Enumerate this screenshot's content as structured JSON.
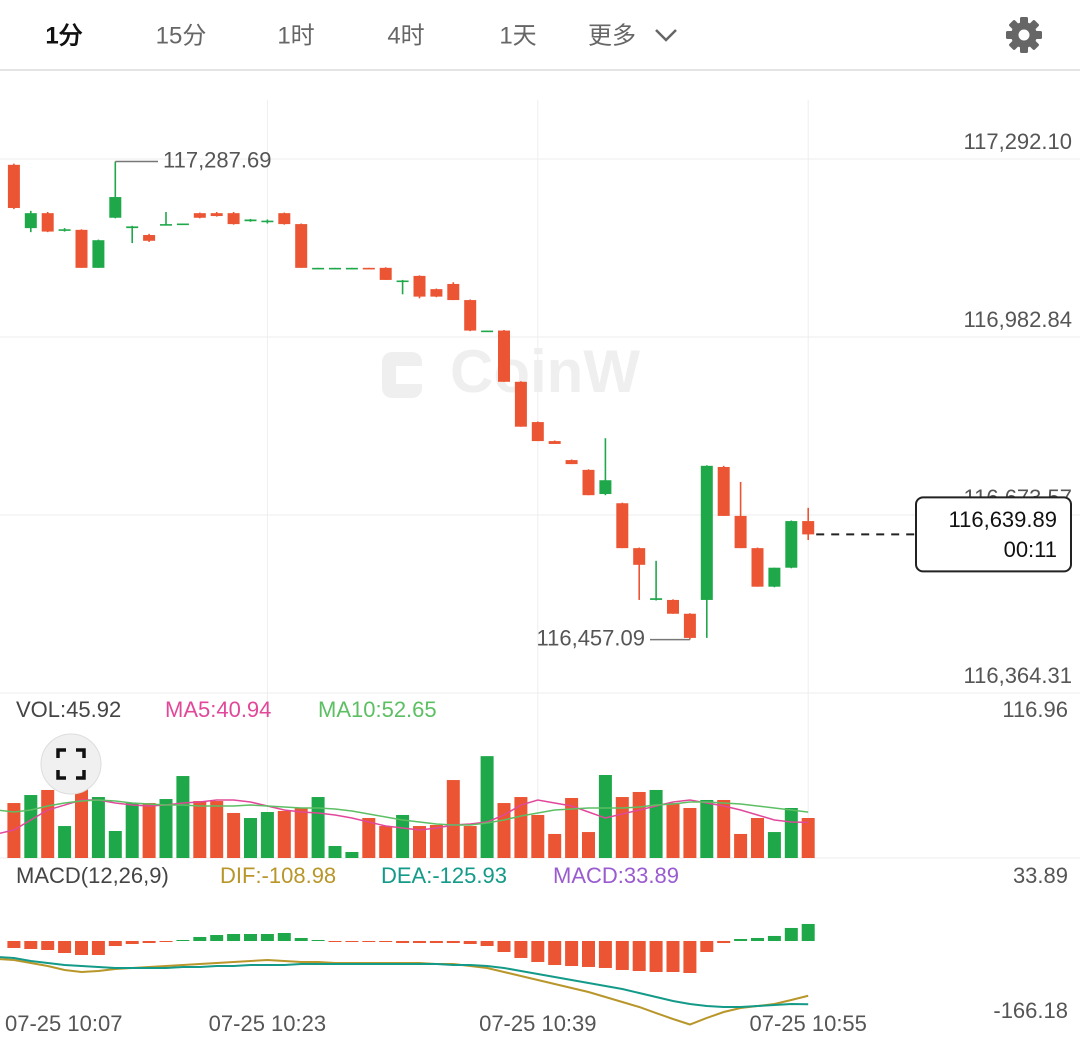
{
  "tabs": [
    "1分",
    "15分",
    "1时",
    "4时",
    "1天",
    "更多"
  ],
  "chart_data": [
    {
      "type": "candlestick",
      "watermark": "CoinW",
      "categories": [
        "07-25 10:07",
        null,
        null,
        null,
        null,
        null,
        null,
        null,
        null,
        null,
        null,
        null,
        null,
        null,
        null,
        null,
        "07-25 10:23",
        null,
        null,
        null,
        null,
        null,
        null,
        null,
        null,
        null,
        null,
        null,
        null,
        null,
        null,
        null,
        "07-25 10:39",
        null,
        null,
        null,
        null,
        null,
        null,
        null,
        null,
        null,
        null,
        null,
        null,
        null,
        null,
        null,
        "07-25 10:55"
      ],
      "open": [
        null,
        117282,
        117172,
        117198,
        117168,
        117169,
        117103,
        117190,
        117172,
        117160,
        117178,
        117179,
        117198,
        117198,
        117198,
        117184,
        117184,
        117198,
        117179,
        117102,
        117102,
        117102,
        117103,
        117103,
        117080,
        117089,
        117066,
        117075,
        117047,
        116993,
        116994,
        116905,
        116835,
        116802,
        116769,
        116752,
        116710,
        116694,
        116616,
        116526,
        116526,
        116502,
        116526,
        116757,
        116672,
        116616,
        116549,
        116582,
        116663
      ],
      "high": [
        null,
        117284,
        117202,
        117200,
        117172,
        117170,
        117152,
        117287.69,
        117176,
        117162,
        117200,
        117180,
        117199,
        117200,
        117200,
        117188,
        117187,
        117199,
        117180,
        117103,
        117103,
        117103,
        117103,
        117104,
        117082,
        117090,
        117067,
        117078,
        117048,
        116994,
        116995,
        116906,
        116836,
        116803,
        116770,
        116753,
        116807,
        116695,
        116617,
        116594,
        116527,
        116503,
        116760,
        116759,
        116731,
        116617,
        116582,
        116664,
        116686
      ],
      "low": [
        null,
        117205,
        117165,
        117165,
        117166,
        117103,
        117103,
        117189,
        117146,
        117148,
        117177,
        117179,
        117189,
        117192,
        117178,
        117183,
        117180,
        117178,
        117103,
        117102,
        117102,
        117102,
        117101,
        117082,
        117057,
        117050,
        117052,
        117047,
        116993,
        116993,
        116905,
        116827,
        116802,
        116797,
        116762,
        116708,
        116708,
        116616,
        116526,
        116525,
        116502,
        116457.09,
        116460,
        116672,
        116616,
        116549,
        116548,
        116581,
        116630
      ],
      "close": [
        null,
        117207,
        117198,
        117166,
        117170,
        117103,
        117151,
        117226,
        117175,
        117150,
        117179,
        117180,
        117190,
        117193,
        117179,
        117187,
        117185,
        117179,
        117103,
        117103,
        117103,
        117103,
        117101,
        117082,
        117081,
        117053,
        117053,
        117047,
        116994,
        116994,
        116905,
        116827,
        116802,
        116797,
        116762,
        116708,
        116734,
        116616,
        116587,
        116529,
        116502,
        116460,
        116759,
        116672,
        116616,
        116549,
        116582,
        116663,
        116639.89
      ],
      "up_color": "#1fa84a",
      "down_color": "#eb5533",
      "ylim": [
        116364.31,
        117394.6
      ],
      "yticks": [
        {
          "value": 117292.1,
          "label": "117,292.10"
        },
        {
          "value": 116982.84,
          "label": "116,982.84"
        },
        {
          "value": 116673.57,
          "label": "116,673.57"
        },
        {
          "value": 116364.31,
          "label": "116,364.31"
        }
      ],
      "grid": true,
      "high_marker": {
        "value": 117287.69,
        "label": "117,287.69"
      },
      "low_marker": {
        "value": 116457.09,
        "label": "116,457.09"
      },
      "last_price": {
        "value": 116639.89,
        "label": "116,639.89"
      },
      "countdown": "00:11"
    },
    {
      "type": "bar",
      "title": "VOL:45.92",
      "max_value": 116.96,
      "ylim": [
        0,
        181.4
      ],
      "values": [
        null,
        63.1,
        72.3,
        78.1,
        36.7,
        83.8,
        70.0,
        31.0,
        63.1,
        63.1,
        67.7,
        94.1,
        65.4,
        65.4,
        51.7,
        45.9,
        52.8,
        54.0,
        57.4,
        70.0,
        13.8,
        6.9,
        45.9,
        36.7,
        49.4,
        36.7,
        37.9,
        89.5,
        36.7,
        116.96,
        63.1,
        70.0,
        49.4,
        27.6,
        68.9,
        29.8,
        95.3,
        70.0,
        75.8,
        78.1,
        63.1,
        57.4,
        66.6,
        66.6,
        27.6,
        45.9,
        29.8,
        57.4,
        45.92
      ],
      "series": [
        {
          "name": "MA5:40.94",
          "color": "#e2489a",
          "values": [
            27.6,
            32.1,
            43.6,
            55.1,
            60.8,
            66.6,
            66.6,
            63.1,
            60.8,
            59.7,
            60.8,
            63.1,
            64.3,
            66.6,
            66.6,
            64.3,
            59.7,
            55.1,
            52.8,
            51.7,
            49.4,
            45.9,
            41.3,
            36.7,
            34.4,
            32.1,
            34.4,
            37.9,
            39.0,
            41.3,
            49.4,
            60.8,
            66.6,
            63.1,
            59.7,
            52.8,
            45.9,
            50.5,
            55.1,
            59.7,
            64.3,
            66.6,
            63.1,
            59.7,
            55.1,
            49.4,
            43.6,
            41.3,
            40.94
          ]
        },
        {
          "name": "MA10:52.65",
          "color": "#5cbf63",
          "values": [
            55.1,
            52.8,
            55.1,
            59.7,
            63.1,
            65.4,
            66.6,
            65.4,
            63.1,
            62.0,
            60.8,
            60.8,
            59.7,
            59.7,
            59.7,
            60.8,
            59.7,
            58.5,
            57.4,
            57.4,
            56.3,
            54.0,
            50.5,
            47.1,
            43.6,
            41.3,
            39.0,
            37.9,
            37.9,
            40.2,
            43.6,
            48.2,
            51.7,
            55.1,
            56.3,
            57.4,
            57.4,
            57.4,
            58.5,
            60.8,
            62.0,
            64.3,
            64.3,
            63.1,
            62.0,
            59.7,
            57.4,
            55.1,
            52.65
          ]
        }
      ]
    },
    {
      "type": "macd",
      "title": "MACD(12,26,9)",
      "histogram_label": "MACD:33.89",
      "histogram_label_color": "#9a5bd0",
      "max_value": 33.89,
      "min_value": -166.18,
      "ylim": [
        -197.0,
        151.2
      ],
      "values": [
        null,
        -13.9,
        -15.9,
        -17.9,
        -23.9,
        -27.9,
        -27.9,
        -10.0,
        -6.0,
        -4.0,
        -2.0,
        2.0,
        8.0,
        11.9,
        13.9,
        13.9,
        13.9,
        15.9,
        6.0,
        2.0,
        -2.0,
        -2.0,
        -2.0,
        -2.0,
        -4.0,
        -4.0,
        -4.0,
        -4.0,
        -6.0,
        -10.0,
        -21.9,
        -33.8,
        -41.8,
        -47.8,
        -49.8,
        -51.7,
        -53.7,
        -57.7,
        -59.7,
        -61.7,
        -61.7,
        -63.7,
        -21.9,
        -4.0,
        4.0,
        6.0,
        10.0,
        25.9,
        33.89
      ],
      "series": [
        {
          "name": "DIF:-108.98",
          "color": "#b8962a",
          "values": [
            -35.8,
            -37.8,
            -43.8,
            -49.8,
            -57.7,
            -61.7,
            -59.7,
            -55.7,
            -53.7,
            -51.7,
            -49.8,
            -47.8,
            -45.8,
            -43.8,
            -41.8,
            -39.8,
            -37.8,
            -39.8,
            -41.8,
            -41.8,
            -43.8,
            -43.8,
            -43.8,
            -43.8,
            -43.8,
            -43.8,
            -45.8,
            -45.8,
            -49.8,
            -53.7,
            -61.7,
            -69.7,
            -77.6,
            -85.6,
            -93.5,
            -101.5,
            -111.4,
            -121.4,
            -131.3,
            -143.3,
            -155.2,
            -166.18,
            -153.2,
            -141.3,
            -133.3,
            -129.4,
            -125.4,
            -117.4,
            -108.98
          ]
        },
        {
          "name": "DEA:-125.93",
          "color": "#139a88",
          "values": [
            -31.8,
            -33.8,
            -39.8,
            -43.8,
            -47.8,
            -49.8,
            -51.7,
            -53.7,
            -53.7,
            -53.7,
            -53.7,
            -51.7,
            -51.7,
            -49.8,
            -49.8,
            -47.8,
            -47.8,
            -47.8,
            -45.8,
            -45.8,
            -45.8,
            -45.8,
            -45.8,
            -45.8,
            -45.8,
            -45.8,
            -45.8,
            -47.8,
            -47.8,
            -49.8,
            -53.7,
            -59.7,
            -65.7,
            -71.6,
            -77.6,
            -83.6,
            -89.6,
            -95.5,
            -103.5,
            -111.4,
            -119.4,
            -125.4,
            -129.4,
            -131.3,
            -131.3,
            -129.4,
            -127.4,
            -125.4,
            -125.93
          ]
        }
      ]
    }
  ]
}
